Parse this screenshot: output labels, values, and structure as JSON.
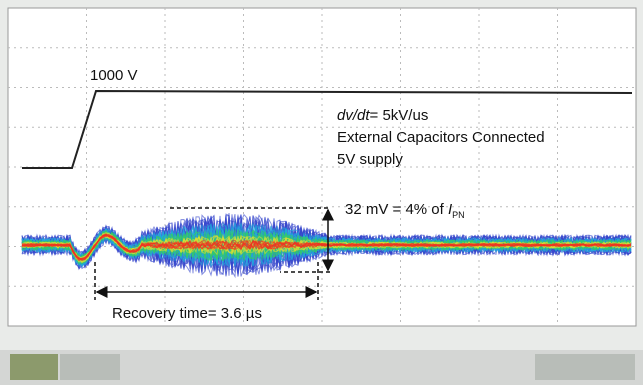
{
  "annotations": {
    "level": "1000 V",
    "slew": {
      "symbol": "dv/dt",
      "value": "= 5kV/us"
    },
    "condition": "External Capacitors Connected",
    "supply": "5V supply",
    "noise": {
      "prefix": "32 mV = 4% of ",
      "symbol": "I",
      "subscript": "PN"
    },
    "recovery": "Recovery time= 3.6 µs"
  }
}
